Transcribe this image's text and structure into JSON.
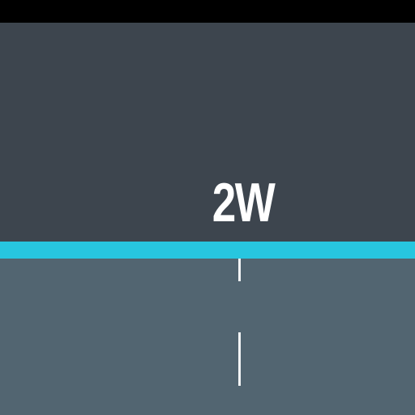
{
  "header": {
    "value_label": "2W"
  },
  "colors": {
    "top_bar": "#000000",
    "header_background": "#3d454e",
    "accent": "#27c6df",
    "lower_background": "#526571",
    "tick": "#f3f5f6",
    "label_text": "#ffffff"
  }
}
